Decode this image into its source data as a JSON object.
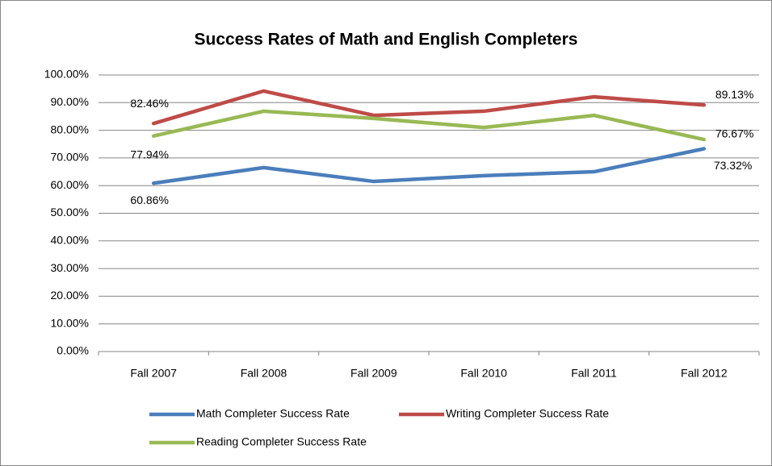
{
  "chart_data": {
    "type": "line",
    "title": "Success Rates of Math and English Completers",
    "categories": [
      "Fall 2007",
      "Fall 2008",
      "Fall 2009",
      "Fall 2010",
      "Fall 2011",
      "Fall 2012"
    ],
    "series": [
      {
        "name": "Math Completer Success Rate",
        "color": "#4a7ebb",
        "values": [
          60.86,
          66.5,
          61.5,
          63.6,
          65.0,
          73.32
        ],
        "value_labels": [
          "60.86%",
          null,
          null,
          null,
          null,
          "73.32%"
        ]
      },
      {
        "name": "Writing Completer Success Rate",
        "color": "#be4b48",
        "values": [
          82.46,
          94.2,
          85.4,
          86.9,
          92.1,
          89.13
        ],
        "value_labels": [
          "82.46%",
          null,
          null,
          null,
          null,
          "89.13%"
        ]
      },
      {
        "name": "Reading Completer Success Rate",
        "color": "#98b954",
        "values": [
          77.94,
          86.9,
          84.3,
          81.0,
          85.4,
          76.67
        ],
        "value_labels": [
          "77.94%",
          null,
          null,
          null,
          null,
          "76.67%"
        ]
      }
    ],
    "ylim": [
      0,
      100
    ],
    "yticks": [
      {
        "value": 0,
        "label": "0.00%"
      },
      {
        "value": 10,
        "label": "10.00%"
      },
      {
        "value": 20,
        "label": "20.00%"
      },
      {
        "value": 30,
        "label": "30.00%"
      },
      {
        "value": 40,
        "label": "40.00%"
      },
      {
        "value": 50,
        "label": "50.00%"
      },
      {
        "value": 60,
        "label": "60.00%"
      },
      {
        "value": 70,
        "label": "70.00%"
      },
      {
        "value": 80,
        "label": "80.00%"
      },
      {
        "value": 90,
        "label": "90.00%"
      },
      {
        "value": 100,
        "label": "100.00%"
      }
    ],
    "grid": true,
    "legend": "bottom"
  }
}
